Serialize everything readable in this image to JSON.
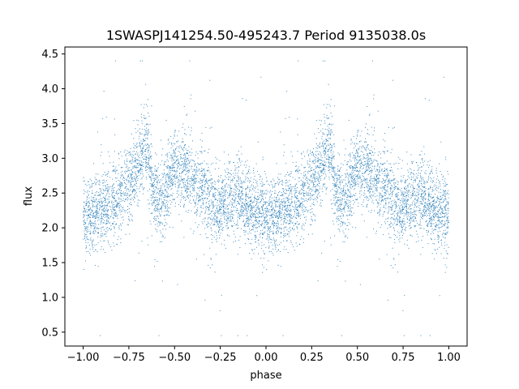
{
  "chart_data": {
    "type": "scatter",
    "title": "1SWASPJ141254.50-495243.7 Period 9135038.0s",
    "xlabel": "phase",
    "ylabel": "flux",
    "xlim": [
      -1.1,
      1.1
    ],
    "ylim": [
      0.3,
      4.6
    ],
    "xticks": [
      -1.0,
      -0.75,
      -0.5,
      -0.25,
      0.0,
      0.25,
      0.5,
      0.75,
      1.0
    ],
    "xtick_labels": [
      "−1.00",
      "−0.75",
      "−0.50",
      "−0.25",
      "0.00",
      "0.25",
      "0.50",
      "0.75",
      "1.00"
    ],
    "yticks": [
      0.5,
      1.0,
      1.5,
      2.0,
      2.5,
      3.0,
      3.5,
      4.0,
      4.5
    ],
    "ytick_labels": [
      "0.5",
      "1.0",
      "1.5",
      "2.0",
      "2.5",
      "3.0",
      "3.5",
      "4.0",
      "4.5"
    ],
    "grid": false,
    "marker_color": "#1f77b4",
    "profile": [
      {
        "phase": 0.0,
        "flux": 2.2
      },
      {
        "phase": 0.05,
        "flux": 2.15
      },
      {
        "phase": 0.1,
        "flux": 2.25
      },
      {
        "phase": 0.15,
        "flux": 2.35
      },
      {
        "phase": 0.2,
        "flux": 2.45
      },
      {
        "phase": 0.25,
        "flux": 2.65
      },
      {
        "phase": 0.3,
        "flux": 2.9
      },
      {
        "phase": 0.35,
        "flux": 3.2
      },
      {
        "phase": 0.38,
        "flux": 2.5
      },
      {
        "phase": 0.42,
        "flux": 2.4
      },
      {
        "phase": 0.45,
        "flux": 2.5
      },
      {
        "phase": 0.5,
        "flux": 2.85
      },
      {
        "phase": 0.55,
        "flux": 2.8
      },
      {
        "phase": 0.6,
        "flux": 2.7
      },
      {
        "phase": 0.65,
        "flux": 2.55
      },
      {
        "phase": 0.7,
        "flux": 2.35
      },
      {
        "phase": 0.75,
        "flux": 2.25
      },
      {
        "phase": 0.8,
        "flux": 2.4
      },
      {
        "phase": 0.85,
        "flux": 2.45
      },
      {
        "phase": 0.9,
        "flux": 2.35
      },
      {
        "phase": 0.95,
        "flux": 2.2
      },
      {
        "phase": 1.0,
        "flux": 2.2
      }
    ],
    "points_per_cycle": 3500
  }
}
